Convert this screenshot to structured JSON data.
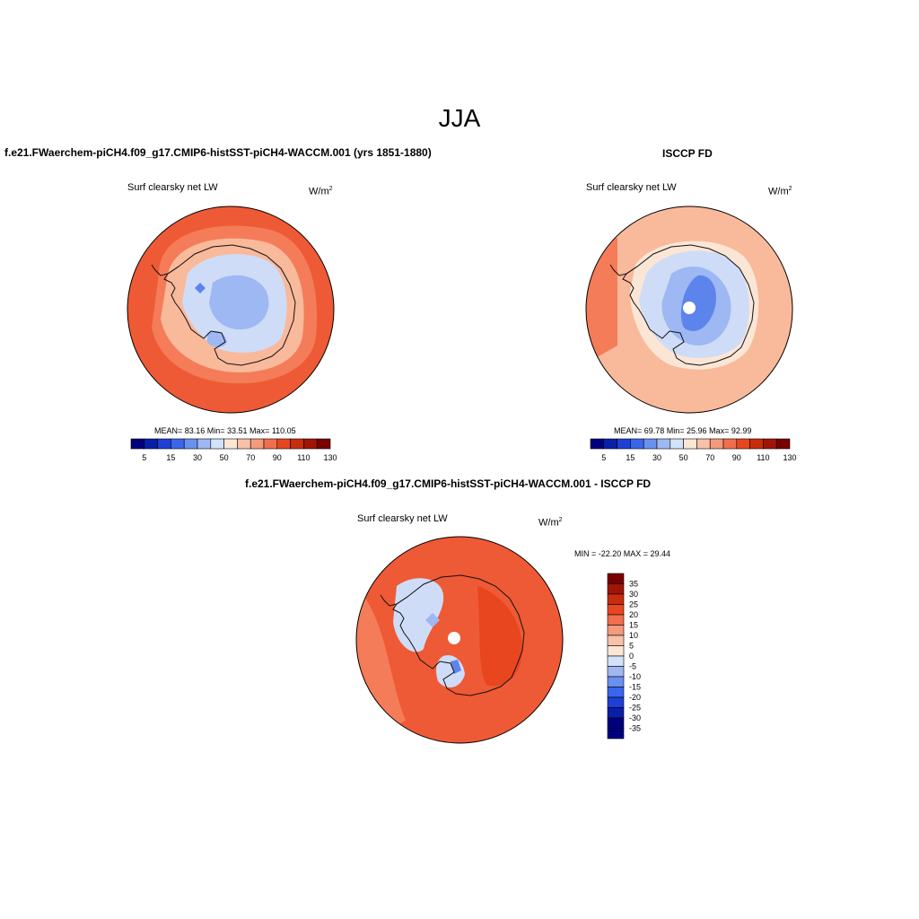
{
  "title": "JJA",
  "panels": {
    "model": {
      "title": "f.e21.FWaerchem-piCH4.f09_g17.CMIP6-histSST-piCH4-WACCM.001 (yrs 1851-1880)",
      "var_label": "Surf clearsky net LW",
      "units": "W/m",
      "units_sup": "2",
      "stats": "MEAN=  83.16  Min=  33.51  Max= 110.05",
      "colorbar_ticks": [
        "5",
        "15",
        "30",
        "50",
        "70",
        "90",
        "110",
        "130"
      ]
    },
    "obs": {
      "title": "ISCCP FD",
      "var_label": "Surf clearsky net LW",
      "units": "W/m",
      "units_sup": "2",
      "stats": "MEAN=  69.78  Min=  25.96  Max=  92.99",
      "colorbar_ticks": [
        "5",
        "15",
        "30",
        "50",
        "70",
        "90",
        "110",
        "130"
      ]
    },
    "diff": {
      "title": "f.e21.FWaerchem-piCH4.f09_g17.CMIP6-histSST-piCH4-WACCM.001 - ISCCP FD",
      "var_label": "Surf clearsky net LW",
      "units": "W/m",
      "units_sup": "2",
      "stats": "MIN = -22.20 MAX =  29.44",
      "colorbar_ticks": [
        "35",
        "30",
        "25",
        "20",
        "15",
        "10",
        "5",
        "0",
        "-5",
        "-10",
        "-15",
        "-20",
        "-25",
        "-30",
        "-35"
      ]
    }
  },
  "palette": [
    "#00007f",
    "#0a1fa8",
    "#1f3fd6",
    "#3a66ec",
    "#6a90f0",
    "#9fb8f2",
    "#d2e2f8",
    "#fbe6d6",
    "#f7c2a8",
    "#f59a7a",
    "#f26e4c",
    "#e8461f",
    "#c82d0c",
    "#a01507",
    "#7a0000"
  ],
  "colors": {
    "field_high": "#ee5a35",
    "field_mid": "#f47c58",
    "field_light": "#f9b99b",
    "ice_light": "#cfdcf7",
    "ice_mid": "#9db8f2",
    "ice_dark": "#5c84ec",
    "coastline": "#111111"
  }
}
